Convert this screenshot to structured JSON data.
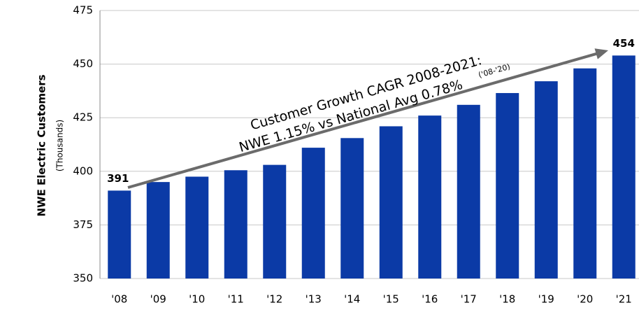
{
  "chart_data": {
    "type": "bar",
    "y_label": "NWE Electric Customers",
    "y_sublabel": "(Thousands)",
    "categories": [
      "'08",
      "'09",
      "'10",
      "'11",
      "'12",
      "'13",
      "'14",
      "'15",
      "'16",
      "'17",
      "'18",
      "'19",
      "'20",
      "'21"
    ],
    "values": [
      391,
      395,
      397.5,
      400.5,
      403,
      411,
      415.5,
      421,
      426,
      431,
      436.5,
      442,
      448,
      454
    ],
    "color": "#0b3aa6",
    "ylim": [
      350,
      475
    ],
    "yticks": [
      350,
      375,
      400,
      425,
      450,
      475
    ],
    "grid": true,
    "annotation": {
      "line1": "Customer Growth CAGR 2008-2021:",
      "line2": "NWE 1.15% vs National Avg 0.78%",
      "note": "('08-'20)"
    }
  }
}
